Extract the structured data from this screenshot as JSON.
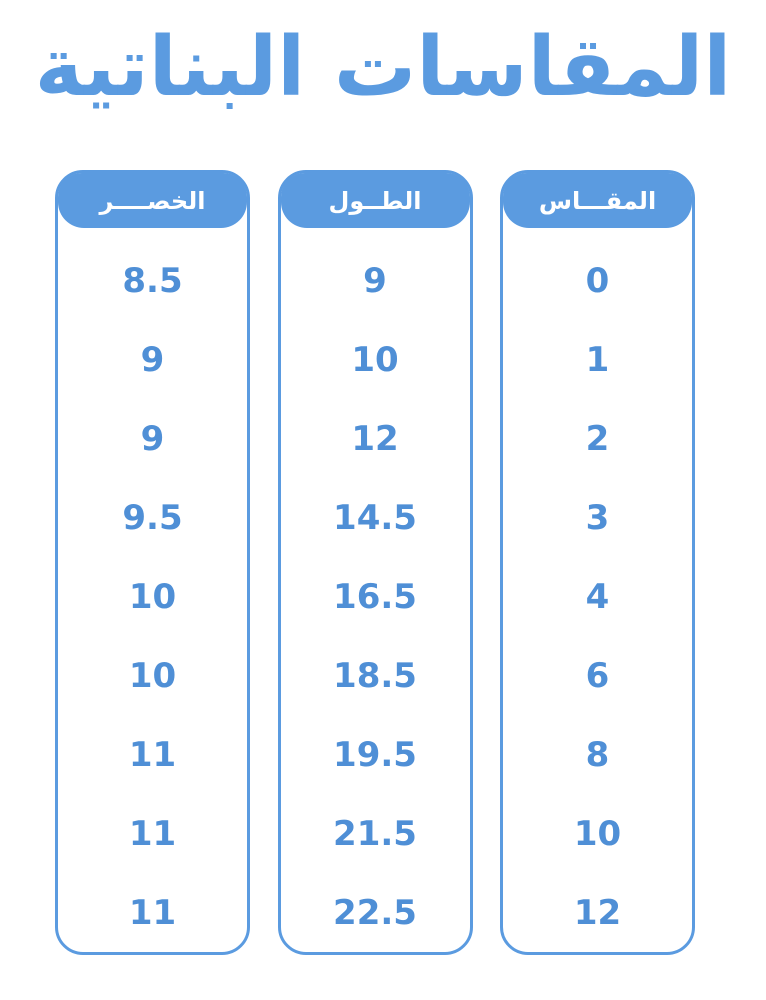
{
  "title": "المقاسات البناتية",
  "accent_color": "#5b9be0",
  "columns": [
    {
      "header": "المقـــاس",
      "values": [
        "0",
        "1",
        "2",
        "3",
        "4",
        "6",
        "8",
        "10",
        "12"
      ]
    },
    {
      "header": "الطــول",
      "values": [
        "9",
        "10",
        "12",
        "14.5",
        "16.5",
        "18.5",
        "19.5",
        "21.5",
        "22.5"
      ]
    },
    {
      "header": "الخصــــر",
      "values": [
        "8.5",
        "9",
        "9",
        "9.5",
        "10",
        "10",
        "11",
        "11",
        "11"
      ]
    }
  ]
}
